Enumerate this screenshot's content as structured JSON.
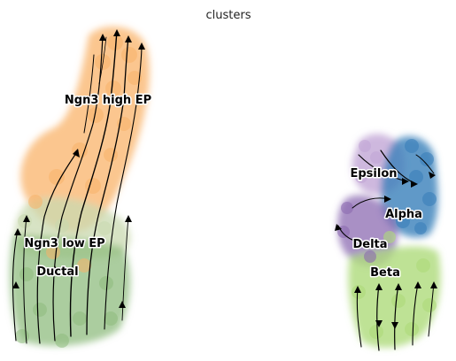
{
  "chart_data": {
    "type": "scatter",
    "title": "clusters",
    "xlabel": "",
    "ylabel": "",
    "axes_visible": false,
    "grid": false,
    "legend": "on data",
    "overlay": "velocity streamlines with arrowheads",
    "clusters": [
      {
        "name": "Ngn3 high EP",
        "color": "#f9b36a"
      },
      {
        "name": "Ngn3 low EP",
        "color": "#c9d9b0"
      },
      {
        "name": "Ductal",
        "color": "#8fbc7e"
      },
      {
        "name": "Epsilon",
        "color": "#c2a6d6"
      },
      {
        "name": "Alpha",
        "color": "#3a7fba"
      },
      {
        "name": "Delta",
        "color": "#8c6bb1"
      },
      {
        "name": "Beta",
        "color": "#aedb7a"
      }
    ]
  }
}
